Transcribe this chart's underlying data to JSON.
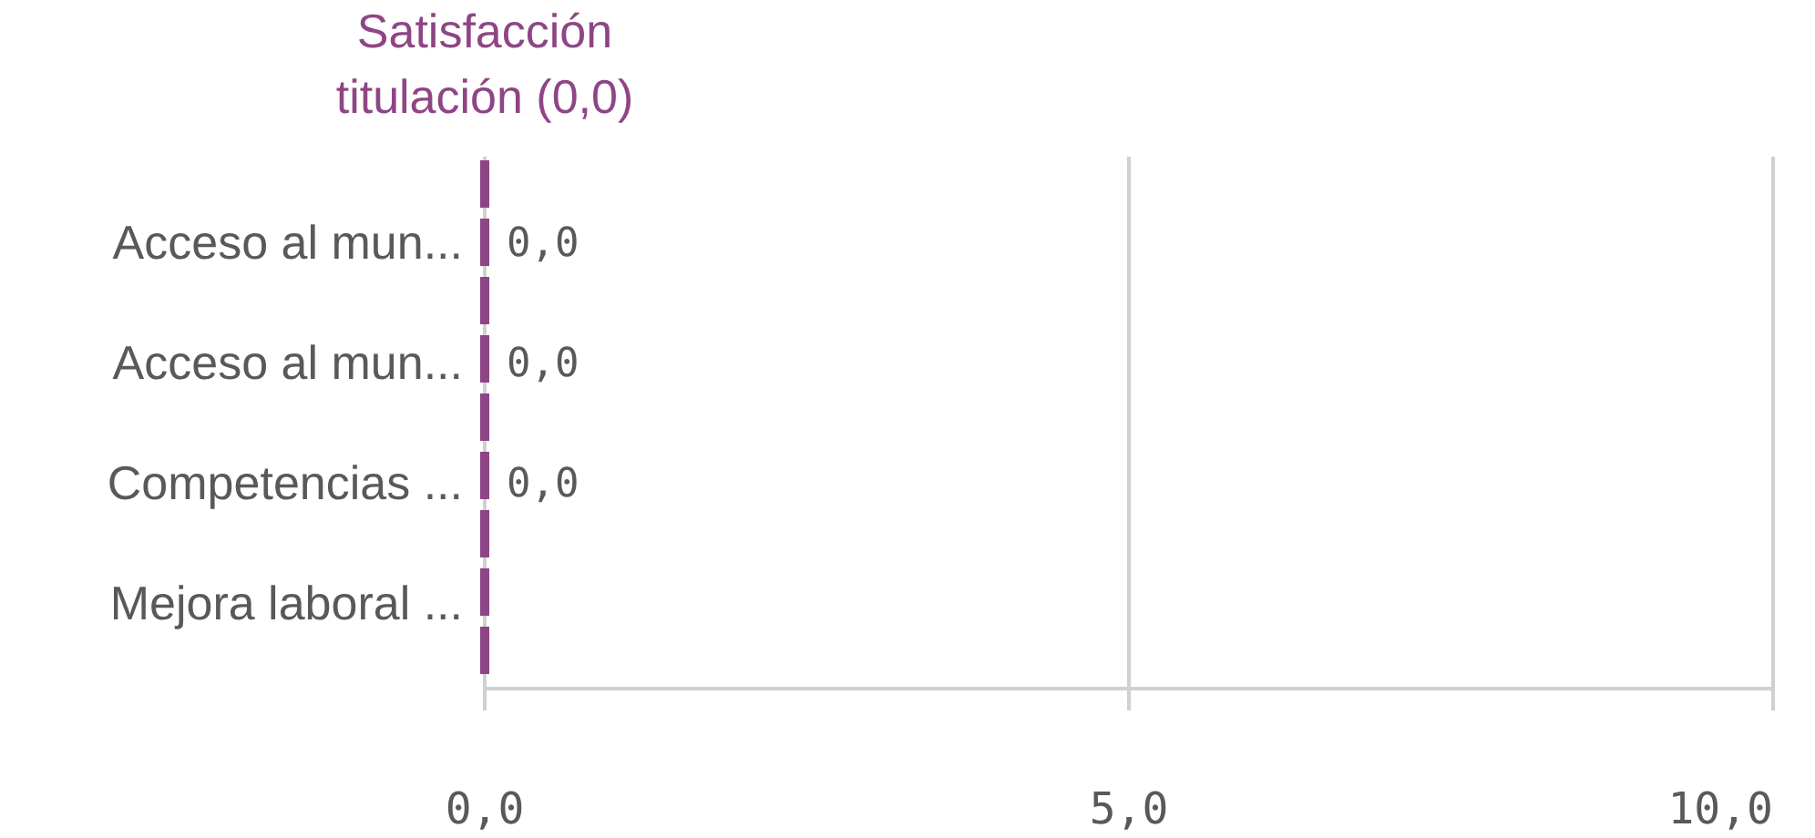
{
  "chart_data": {
    "type": "bar",
    "orientation": "horizontal",
    "categories": [
      "Acceso al mun...",
      "Acceso al mun...",
      "Competencias ...",
      "Mejora laboral ..."
    ],
    "values": [
      0,
      0,
      0,
      null
    ],
    "value_labels": [
      "0,0",
      "0,0",
      "0,0",
      null
    ],
    "xlim": [
      0,
      10
    ],
    "xticks": [
      {
        "value": 0,
        "label": "0,0"
      },
      {
        "value": 5,
        "label": "5,0"
      },
      {
        "value": 10,
        "label": "10,0"
      }
    ],
    "grid": "x",
    "ref_lines": [
      {
        "axis": "x",
        "value": 0,
        "label": "Satisfacción titulación (0,0)",
        "color": "#8e4585",
        "line_style": "dashed"
      }
    ]
  }
}
